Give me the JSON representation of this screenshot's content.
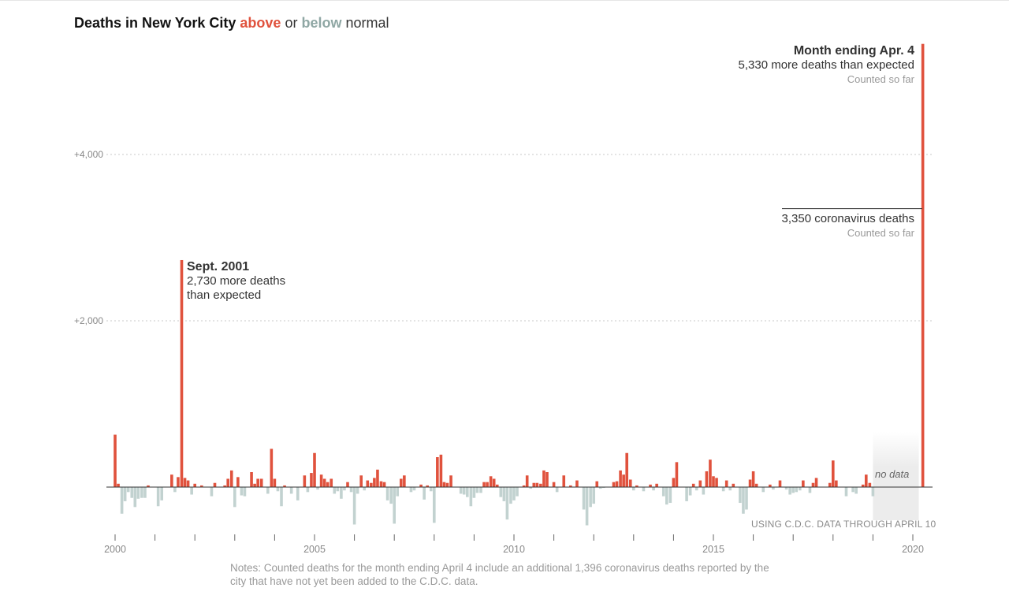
{
  "title": {
    "lead": "Deaths in New York City",
    "above": "above",
    "or": "or",
    "below": "below",
    "tail": "normal",
    "above_color": "#e0523d",
    "below_color": "#8fa7a4"
  },
  "colors": {
    "above": "#e0523d",
    "below": "#c2d2d0",
    "grid": "#c8c8c8",
    "axis": "#333333"
  },
  "annotations": {
    "apr": {
      "head": "Month ending Apr. 4",
      "line": "5,330 more deaths than expected",
      "sub": "Counted so far"
    },
    "covid": {
      "line": "3,350 coronavirus deaths",
      "sub": "Counted so far"
    },
    "sept": {
      "head": "Sept. 2001",
      "line1": "2,730 more deaths",
      "line2": "than expected"
    },
    "no_data": "no data",
    "source": "USING C.D.C. DATA THROUGH APRIL 10"
  },
  "notes": "Notes: Counted deaths for the month ending April 4 include an additional 1,396 coronavirus deaths reported by the city that have not yet been added to the C.D.C. data.",
  "chart_data": {
    "type": "bar",
    "title": "Deaths in New York City above or below normal",
    "xlabel": "",
    "ylabel": "",
    "x_range": [
      2000,
      2020.3
    ],
    "ylim": [
      -600,
      5400
    ],
    "y_ticks": [
      {
        "value": 2000,
        "label": "+2,000"
      },
      {
        "value": 4000,
        "label": "+4,000"
      }
    ],
    "x_ticks": [
      {
        "value": 2000,
        "label": "2000"
      },
      {
        "value": 2001,
        "label": ""
      },
      {
        "value": 2002,
        "label": ""
      },
      {
        "value": 2003,
        "label": ""
      },
      {
        "value": 2004,
        "label": ""
      },
      {
        "value": 2005,
        "label": "2005"
      },
      {
        "value": 2006,
        "label": ""
      },
      {
        "value": 2007,
        "label": ""
      },
      {
        "value": 2008,
        "label": ""
      },
      {
        "value": 2009,
        "label": ""
      },
      {
        "value": 2010,
        "label": "2010"
      },
      {
        "value": 2011,
        "label": ""
      },
      {
        "value": 2012,
        "label": ""
      },
      {
        "value": 2013,
        "label": ""
      },
      {
        "value": 2014,
        "label": ""
      },
      {
        "value": 2015,
        "label": "2015"
      },
      {
        "value": 2016,
        "label": ""
      },
      {
        "value": 2017,
        "label": ""
      },
      {
        "value": 2018,
        "label": ""
      },
      {
        "value": 2019,
        "label": ""
      },
      {
        "value": 2020,
        "label": "2020"
      }
    ],
    "no_data_range": [
      2019.0,
      2020.15
    ],
    "covid_portion": 3350,
    "series": [
      {
        "values": [
          {
            "x": 2000.0,
            "y": 630
          },
          {
            "x": 2000.08,
            "y": 40
          },
          {
            "x": 2000.17,
            "y": -320
          },
          {
            "x": 2000.25,
            "y": -170
          },
          {
            "x": 2000.33,
            "y": -60
          },
          {
            "x": 2000.42,
            "y": -130
          },
          {
            "x": 2000.5,
            "y": -240
          },
          {
            "x": 2000.58,
            "y": -140
          },
          {
            "x": 2000.67,
            "y": -130
          },
          {
            "x": 2000.75,
            "y": -130
          },
          {
            "x": 2000.83,
            "y": 20
          },
          {
            "x": 2000.92,
            "y": 0
          },
          {
            "x": 2001.0,
            "y": 0
          },
          {
            "x": 2001.08,
            "y": -230
          },
          {
            "x": 2001.17,
            "y": -160
          },
          {
            "x": 2001.25,
            "y": 0
          },
          {
            "x": 2001.33,
            "y": 0
          },
          {
            "x": 2001.42,
            "y": 150
          },
          {
            "x": 2001.5,
            "y": -60
          },
          {
            "x": 2001.58,
            "y": 120
          },
          {
            "x": 2001.67,
            "y": 2730
          },
          {
            "x": 2001.75,
            "y": 110
          },
          {
            "x": 2001.83,
            "y": 80
          },
          {
            "x": 2001.92,
            "y": -90
          },
          {
            "x": 2002.0,
            "y": 40
          },
          {
            "x": 2002.08,
            "y": 0
          },
          {
            "x": 2002.17,
            "y": 20
          },
          {
            "x": 2002.25,
            "y": 0
          },
          {
            "x": 2002.33,
            "y": 0
          },
          {
            "x": 2002.42,
            "y": -110
          },
          {
            "x": 2002.5,
            "y": 50
          },
          {
            "x": 2002.58,
            "y": 0
          },
          {
            "x": 2002.67,
            "y": 0
          },
          {
            "x": 2002.75,
            "y": 20
          },
          {
            "x": 2002.83,
            "y": 100
          },
          {
            "x": 2002.92,
            "y": 200
          },
          {
            "x": 2003.0,
            "y": -240
          },
          {
            "x": 2003.08,
            "y": 120
          },
          {
            "x": 2003.17,
            "y": -100
          },
          {
            "x": 2003.25,
            "y": -110
          },
          {
            "x": 2003.33,
            "y": 0
          },
          {
            "x": 2003.42,
            "y": 180
          },
          {
            "x": 2003.5,
            "y": 40
          },
          {
            "x": 2003.58,
            "y": 100
          },
          {
            "x": 2003.67,
            "y": 100
          },
          {
            "x": 2003.75,
            "y": 0
          },
          {
            "x": 2003.83,
            "y": -80
          },
          {
            "x": 2003.92,
            "y": 460
          },
          {
            "x": 2004.0,
            "y": 100
          },
          {
            "x": 2004.08,
            "y": -50
          },
          {
            "x": 2004.17,
            "y": -230
          },
          {
            "x": 2004.25,
            "y": 20
          },
          {
            "x": 2004.33,
            "y": 0
          },
          {
            "x": 2004.42,
            "y": -80
          },
          {
            "x": 2004.5,
            "y": 0
          },
          {
            "x": 2004.58,
            "y": -160
          },
          {
            "x": 2004.67,
            "y": 0
          },
          {
            "x": 2004.75,
            "y": 140
          },
          {
            "x": 2004.83,
            "y": -60
          },
          {
            "x": 2004.92,
            "y": 170
          },
          {
            "x": 2005.0,
            "y": 410
          },
          {
            "x": 2005.08,
            "y": -30
          },
          {
            "x": 2005.17,
            "y": 150
          },
          {
            "x": 2005.25,
            "y": 100
          },
          {
            "x": 2005.33,
            "y": 60
          },
          {
            "x": 2005.42,
            "y": 100
          },
          {
            "x": 2005.5,
            "y": -80
          },
          {
            "x": 2005.58,
            "y": -50
          },
          {
            "x": 2005.67,
            "y": -140
          },
          {
            "x": 2005.75,
            "y": -40
          },
          {
            "x": 2005.83,
            "y": 60
          },
          {
            "x": 2005.92,
            "y": -60
          },
          {
            "x": 2006.0,
            "y": -450
          },
          {
            "x": 2006.08,
            "y": -80
          },
          {
            "x": 2006.17,
            "y": 140
          },
          {
            "x": 2006.25,
            "y": -40
          },
          {
            "x": 2006.33,
            "y": 80
          },
          {
            "x": 2006.42,
            "y": 50
          },
          {
            "x": 2006.5,
            "y": 110
          },
          {
            "x": 2006.58,
            "y": 210
          },
          {
            "x": 2006.67,
            "y": 70
          },
          {
            "x": 2006.75,
            "y": 60
          },
          {
            "x": 2006.83,
            "y": -160
          },
          {
            "x": 2006.92,
            "y": -200
          },
          {
            "x": 2007.0,
            "y": -440
          },
          {
            "x": 2007.08,
            "y": -110
          },
          {
            "x": 2007.17,
            "y": 100
          },
          {
            "x": 2007.25,
            "y": 140
          },
          {
            "x": 2007.33,
            "y": 0
          },
          {
            "x": 2007.42,
            "y": -60
          },
          {
            "x": 2007.5,
            "y": -40
          },
          {
            "x": 2007.58,
            "y": 0
          },
          {
            "x": 2007.67,
            "y": 30
          },
          {
            "x": 2007.75,
            "y": -150
          },
          {
            "x": 2007.83,
            "y": 20
          },
          {
            "x": 2007.92,
            "y": -50
          },
          {
            "x": 2008.0,
            "y": -430
          },
          {
            "x": 2008.08,
            "y": 360
          },
          {
            "x": 2008.17,
            "y": 390
          },
          {
            "x": 2008.25,
            "y": 60
          },
          {
            "x": 2008.33,
            "y": 50
          },
          {
            "x": 2008.42,
            "y": 140
          },
          {
            "x": 2008.5,
            "y": 0
          },
          {
            "x": 2008.58,
            "y": 0
          },
          {
            "x": 2008.67,
            "y": -80
          },
          {
            "x": 2008.75,
            "y": -90
          },
          {
            "x": 2008.83,
            "y": -120
          },
          {
            "x": 2008.92,
            "y": -230
          },
          {
            "x": 2009.0,
            "y": -130
          },
          {
            "x": 2009.08,
            "y": -70
          },
          {
            "x": 2009.17,
            "y": -70
          },
          {
            "x": 2009.25,
            "y": 60
          },
          {
            "x": 2009.33,
            "y": 60
          },
          {
            "x": 2009.42,
            "y": 130
          },
          {
            "x": 2009.5,
            "y": 100
          },
          {
            "x": 2009.58,
            "y": 30
          },
          {
            "x": 2009.67,
            "y": -120
          },
          {
            "x": 2009.75,
            "y": -170
          },
          {
            "x": 2009.83,
            "y": -390
          },
          {
            "x": 2009.92,
            "y": -200
          },
          {
            "x": 2010.0,
            "y": -160
          },
          {
            "x": 2010.08,
            "y": -110
          },
          {
            "x": 2010.17,
            "y": 0
          },
          {
            "x": 2010.25,
            "y": 20
          },
          {
            "x": 2010.33,
            "y": 140
          },
          {
            "x": 2010.42,
            "y": -20
          },
          {
            "x": 2010.5,
            "y": 50
          },
          {
            "x": 2010.58,
            "y": 50
          },
          {
            "x": 2010.67,
            "y": 40
          },
          {
            "x": 2010.75,
            "y": 200
          },
          {
            "x": 2010.83,
            "y": 180
          },
          {
            "x": 2010.92,
            "y": 0
          },
          {
            "x": 2011.0,
            "y": 60
          },
          {
            "x": 2011.08,
            "y": -60
          },
          {
            "x": 2011.17,
            "y": 0
          },
          {
            "x": 2011.25,
            "y": 140
          },
          {
            "x": 2011.33,
            "y": 0
          },
          {
            "x": 2011.42,
            "y": 20
          },
          {
            "x": 2011.5,
            "y": 0
          },
          {
            "x": 2011.58,
            "y": 80
          },
          {
            "x": 2011.67,
            "y": 0
          },
          {
            "x": 2011.75,
            "y": -270
          },
          {
            "x": 2011.83,
            "y": -460
          },
          {
            "x": 2011.92,
            "y": -240
          },
          {
            "x": 2012.0,
            "y": -200
          },
          {
            "x": 2012.08,
            "y": 70
          },
          {
            "x": 2012.17,
            "y": -20
          },
          {
            "x": 2012.25,
            "y": -10
          },
          {
            "x": 2012.33,
            "y": 0
          },
          {
            "x": 2012.42,
            "y": 0
          },
          {
            "x": 2012.5,
            "y": 60
          },
          {
            "x": 2012.58,
            "y": 70
          },
          {
            "x": 2012.67,
            "y": 200
          },
          {
            "x": 2012.75,
            "y": 150
          },
          {
            "x": 2012.83,
            "y": 410
          },
          {
            "x": 2012.92,
            "y": 90
          },
          {
            "x": 2013.0,
            "y": -40
          },
          {
            "x": 2013.08,
            "y": 20
          },
          {
            "x": 2013.17,
            "y": 0
          },
          {
            "x": 2013.25,
            "y": -50
          },
          {
            "x": 2013.33,
            "y": 0
          },
          {
            "x": 2013.42,
            "y": 30
          },
          {
            "x": 2013.5,
            "y": -40
          },
          {
            "x": 2013.58,
            "y": 40
          },
          {
            "x": 2013.67,
            "y": 0
          },
          {
            "x": 2013.75,
            "y": -110
          },
          {
            "x": 2013.83,
            "y": -210
          },
          {
            "x": 2013.92,
            "y": -190
          },
          {
            "x": 2014.0,
            "y": 110
          },
          {
            "x": 2014.08,
            "y": 300
          },
          {
            "x": 2014.17,
            "y": 0
          },
          {
            "x": 2014.25,
            "y": 0
          },
          {
            "x": 2014.33,
            "y": -170
          },
          {
            "x": 2014.42,
            "y": -100
          },
          {
            "x": 2014.5,
            "y": 40
          },
          {
            "x": 2014.58,
            "y": -40
          },
          {
            "x": 2014.67,
            "y": 80
          },
          {
            "x": 2014.75,
            "y": -90
          },
          {
            "x": 2014.83,
            "y": 190
          },
          {
            "x": 2014.92,
            "y": 330
          },
          {
            "x": 2015.0,
            "y": 130
          },
          {
            "x": 2015.08,
            "y": 110
          },
          {
            "x": 2015.17,
            "y": 0
          },
          {
            "x": 2015.25,
            "y": -50
          },
          {
            "x": 2015.33,
            "y": 80
          },
          {
            "x": 2015.42,
            "y": -40
          },
          {
            "x": 2015.5,
            "y": 40
          },
          {
            "x": 2015.58,
            "y": 0
          },
          {
            "x": 2015.67,
            "y": -190
          },
          {
            "x": 2015.75,
            "y": -320
          },
          {
            "x": 2015.83,
            "y": -270
          },
          {
            "x": 2015.92,
            "y": 90
          },
          {
            "x": 2016.0,
            "y": 190
          },
          {
            "x": 2016.08,
            "y": 40
          },
          {
            "x": 2016.17,
            "y": 0
          },
          {
            "x": 2016.25,
            "y": -60
          },
          {
            "x": 2016.33,
            "y": 0
          },
          {
            "x": 2016.42,
            "y": 30
          },
          {
            "x": 2016.5,
            "y": -30
          },
          {
            "x": 2016.58,
            "y": 0
          },
          {
            "x": 2016.67,
            "y": 80
          },
          {
            "x": 2016.75,
            "y": 0
          },
          {
            "x": 2016.83,
            "y": -30
          },
          {
            "x": 2016.92,
            "y": -90
          },
          {
            "x": 2017.0,
            "y": -70
          },
          {
            "x": 2017.08,
            "y": -60
          },
          {
            "x": 2017.17,
            "y": -40
          },
          {
            "x": 2017.25,
            "y": 80
          },
          {
            "x": 2017.33,
            "y": 0
          },
          {
            "x": 2017.42,
            "y": -70
          },
          {
            "x": 2017.5,
            "y": 50
          },
          {
            "x": 2017.58,
            "y": 110
          },
          {
            "x": 2017.67,
            "y": 0
          },
          {
            "x": 2017.75,
            "y": 0
          },
          {
            "x": 2017.83,
            "y": 0
          },
          {
            "x": 2017.92,
            "y": 50
          },
          {
            "x": 2018.0,
            "y": 320
          },
          {
            "x": 2018.08,
            "y": 80
          },
          {
            "x": 2018.17,
            "y": 0
          },
          {
            "x": 2018.25,
            "y": 0
          },
          {
            "x": 2018.33,
            "y": -110
          },
          {
            "x": 2018.42,
            "y": 0
          },
          {
            "x": 2018.5,
            "y": -60
          },
          {
            "x": 2018.58,
            "y": -80
          },
          {
            "x": 2018.67,
            "y": 0
          },
          {
            "x": 2018.75,
            "y": 30
          },
          {
            "x": 2018.83,
            "y": 150
          },
          {
            "x": 2018.92,
            "y": 50
          },
          {
            "x": 2019.0,
            "y": -110
          },
          {
            "x": 2020.25,
            "y": 5330
          }
        ]
      }
    ]
  }
}
